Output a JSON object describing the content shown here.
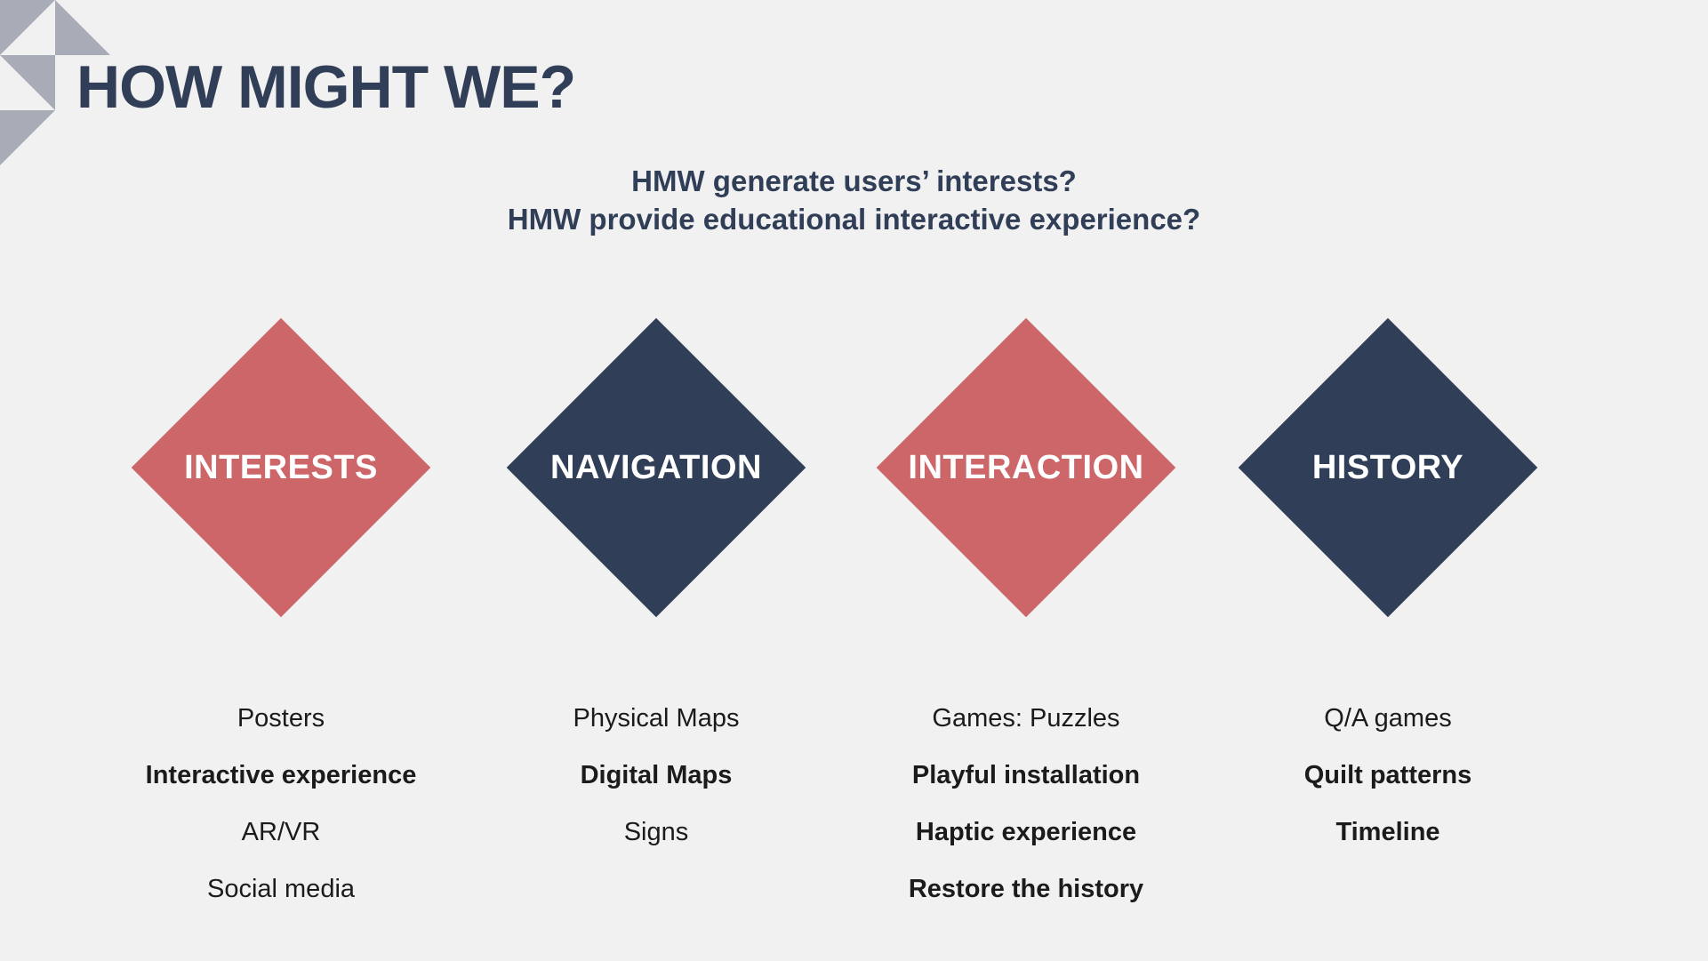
{
  "header": {
    "title": "HOW MIGHT WE?"
  },
  "questions": [
    "HMW generate users’ interests?",
    "HMW provide educational interactive experience?"
  ],
  "colors": {
    "coral": "#cc6668",
    "navy": "#303e58",
    "text": "#1b1b1b",
    "deco": "#a7acb6"
  },
  "categories": [
    {
      "label": "INTERESTS",
      "color": "coral",
      "items": [
        {
          "text": "Posters",
          "bold": false
        },
        {
          "text": "Interactive experience",
          "bold": true
        },
        {
          "text": "AR/VR",
          "bold": false
        },
        {
          "text": "Social media",
          "bold": false
        }
      ]
    },
    {
      "label": "NAVIGATION",
      "color": "navy",
      "items": [
        {
          "text": "Physical Maps",
          "bold": false
        },
        {
          "text": "Digital Maps",
          "bold": true
        },
        {
          "text": "Signs",
          "bold": false
        }
      ]
    },
    {
      "label": "INTERACTION",
      "color": "coral",
      "items": [
        {
          "text": "Games: Puzzles",
          "bold": false
        },
        {
          "text": "Playful installation",
          "bold": true
        },
        {
          "text": "Haptic experience",
          "bold": true
        },
        {
          "text": "Restore the history",
          "bold": true
        }
      ]
    },
    {
      "label": "HISTORY",
      "color": "navy",
      "items": [
        {
          "text": "Q/A games",
          "bold": false
        },
        {
          "text": "Quilt patterns",
          "bold": true
        },
        {
          "text": "Timeline",
          "bold": true
        }
      ]
    }
  ]
}
